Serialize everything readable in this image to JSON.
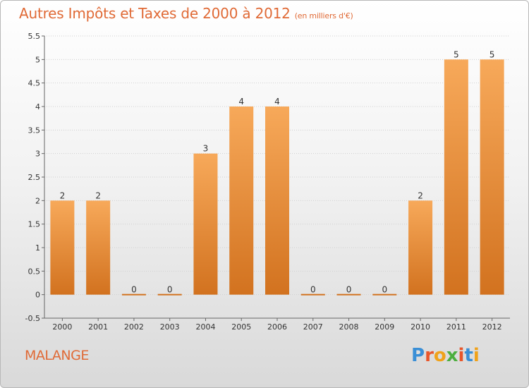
{
  "title": "Autres Impôts et Taxes de 2000 à 2012",
  "unit": "(en milliers d'€)",
  "town": "MALANGE",
  "logo": {
    "text": "Proxiti",
    "colors": [
      "#3a8fd6",
      "#e8562a",
      "#f0a21a",
      "#4cae3f",
      "#e8562a",
      "#3a8fd6",
      "#f0a21a"
    ]
  },
  "colors": {
    "bar_top": "#f7a95a",
    "bar_bottom": "#d2721f",
    "title": "#e06a36"
  },
  "chart_data": {
    "type": "bar",
    "categories": [
      "2000",
      "2001",
      "2002",
      "2003",
      "2004",
      "2005",
      "2006",
      "2007",
      "2008",
      "2009",
      "2010",
      "2011",
      "2012"
    ],
    "values": [
      2,
      2,
      0,
      0,
      3,
      4,
      4,
      0,
      0,
      0,
      2,
      5,
      5
    ],
    "data_labels": [
      "2",
      "2",
      "0",
      "0",
      "3",
      "4",
      "4",
      "0",
      "0",
      "0",
      "2",
      "5",
      "5"
    ],
    "ylim": [
      -0.5,
      5.5
    ],
    "yticks": [
      "-0.5",
      "0",
      "0.5",
      "1",
      "1.5",
      "2",
      "2.5",
      "3",
      "3.5",
      "4",
      "4.5",
      "5",
      "5.5"
    ],
    "grid": true,
    "title": "Autres Impôts et Taxes de 2000 à 2012",
    "xlabel": "",
    "ylabel": ""
  }
}
